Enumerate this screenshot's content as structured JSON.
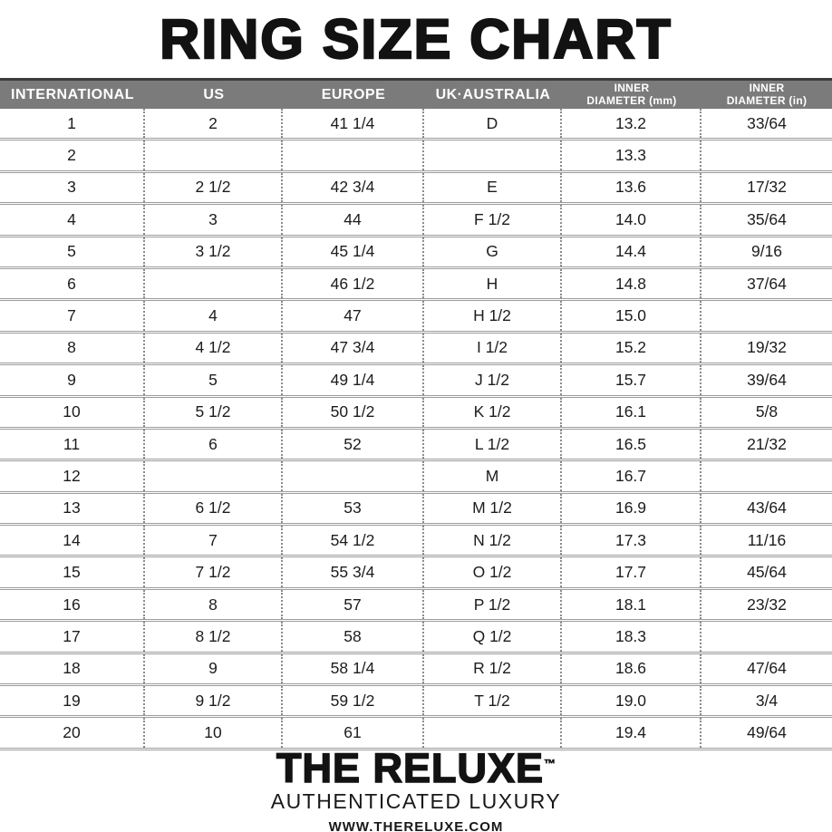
{
  "title": "RING SIZE CHART",
  "table": {
    "columns": [
      {
        "label": "INTERNATIONAL"
      },
      {
        "label": "US"
      },
      {
        "label": "EUROPE"
      },
      {
        "label": "UK·AUSTRALIA"
      },
      {
        "line1": "INNER",
        "line2": "DIAMETER (mm)"
      },
      {
        "line1": "INNER",
        "line2": "DIAMETER (in)"
      }
    ],
    "rows": [
      [
        "1",
        "2",
        "41 1/4",
        "D",
        "13.2",
        "33/64"
      ],
      [
        "2",
        "",
        "",
        "",
        "13.3",
        ""
      ],
      [
        "3",
        "2 1/2",
        "42 3/4",
        "E",
        "13.6",
        "17/32"
      ],
      [
        "4",
        "3",
        "44",
        "F 1/2",
        "14.0",
        "35/64"
      ],
      [
        "5",
        "3 1/2",
        "45 1/4",
        "G",
        "14.4",
        "9/16"
      ],
      [
        "6",
        "",
        "46 1/2",
        "H",
        "14.8",
        "37/64"
      ],
      [
        "7",
        "4",
        "47",
        "H 1/2",
        "15.0",
        ""
      ],
      [
        "8",
        "4 1/2",
        "47 3/4",
        "I 1/2",
        "15.2",
        "19/32"
      ],
      [
        "9",
        "5",
        "49 1/4",
        "J 1/2",
        "15.7",
        "39/64"
      ],
      [
        "10",
        "5 1/2",
        "50 1/2",
        "K 1/2",
        "16.1",
        "5/8"
      ],
      [
        "11",
        "6",
        "52",
        "L 1/2",
        "16.5",
        "21/32"
      ],
      [
        "12",
        "",
        "",
        "M",
        "16.7",
        ""
      ],
      [
        "13",
        "6 1/2",
        "53",
        "M 1/2",
        "16.9",
        "43/64"
      ],
      [
        "14",
        "7",
        "54 1/2",
        "N 1/2",
        "17.3",
        "11/16"
      ],
      [
        "15",
        "7 1/2",
        "55 3/4",
        "O 1/2",
        "17.7",
        "45/64"
      ],
      [
        "16",
        "8",
        "57",
        "P 1/2",
        "18.1",
        "23/32"
      ],
      [
        "17",
        "8 1/2",
        "58",
        "Q 1/2",
        "18.3",
        ""
      ],
      [
        "18",
        "9",
        "58 1/4",
        "R 1/2",
        "18.6",
        "47/64"
      ],
      [
        "19",
        "9 1/2",
        "59 1/2",
        "T 1/2",
        "19.0",
        "3/4"
      ],
      [
        "20",
        "10",
        "61",
        "",
        "19.4",
        "49/64"
      ]
    ]
  },
  "footer": {
    "brand": "THE RELUXE",
    "trademark": "™",
    "tagline": "AUTHENTICATED LUXURY",
    "website": "WWW.THERELUXE.COM"
  },
  "colors": {
    "header_bg": "#7b7b7b",
    "header_top_strip": "#3b3b3b",
    "header_text": "#ffffff",
    "body_text": "#1c1c1c",
    "separator": "#9c9c9c",
    "title_text": "#121212"
  }
}
